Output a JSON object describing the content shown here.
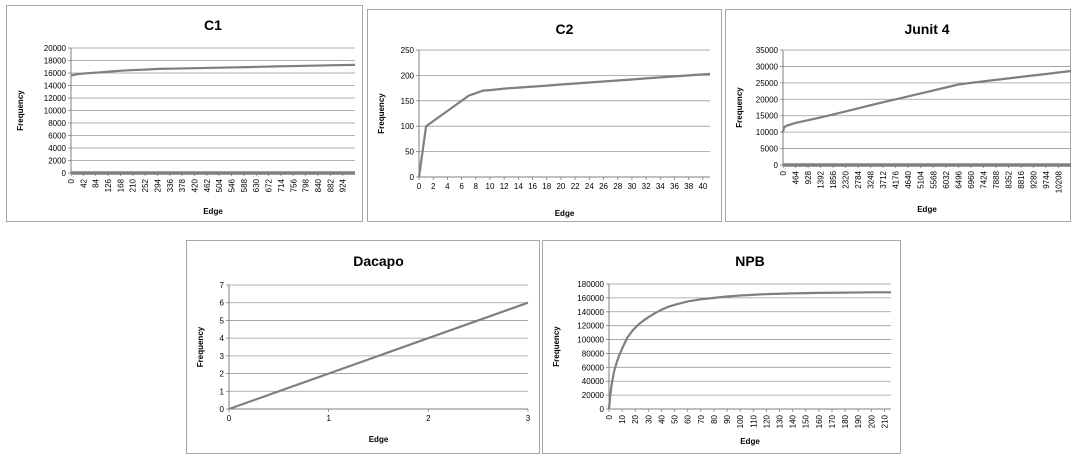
{
  "chart_data": [
    {
      "type": "line",
      "title": "C1",
      "xlabel": "Edge",
      "ylabel": "Frequency",
      "x_tick_labels": [
        "0",
        "42",
        "84",
        "126",
        "168",
        "210",
        "252",
        "294",
        "336",
        "378",
        "420",
        "462",
        "504",
        "546",
        "588",
        "630",
        "672",
        "714",
        "756",
        "798",
        "840",
        "882",
        "924"
      ],
      "x_tick_rotated": true,
      "xlim": [
        0,
        966
      ],
      "ylim": [
        0,
        20000
      ],
      "y_ticks": [
        0,
        2000,
        4000,
        6000,
        8000,
        10000,
        12000,
        14000,
        16000,
        18000,
        20000
      ],
      "grid": true,
      "baseline_thick": true,
      "series": [
        {
          "x": [
            0,
            20,
            50,
            100,
            150,
            200,
            250,
            300,
            400,
            500,
            600,
            700,
            800,
            900,
            966
          ],
          "y": [
            15600,
            15800,
            15950,
            16100,
            16300,
            16450,
            16550,
            16650,
            16750,
            16850,
            16950,
            17050,
            17150,
            17250,
            17300
          ]
        }
      ]
    },
    {
      "type": "line",
      "title": "C2",
      "xlabel": "Edge",
      "ylabel": "Frequency",
      "x_ticks": [
        0,
        2,
        4,
        6,
        8,
        10,
        12,
        14,
        16,
        18,
        20,
        22,
        24,
        26,
        28,
        30,
        32,
        34,
        36,
        38,
        40
      ],
      "x_tick_rotated": false,
      "xlim": [
        0,
        41
      ],
      "ylim": [
        0,
        250
      ],
      "y_ticks": [
        0,
        50,
        100,
        150,
        200,
        250
      ],
      "grid": true,
      "series": [
        {
          "x": [
            0,
            1,
            2,
            3,
            4,
            5,
            6,
            7,
            8,
            9,
            10,
            12,
            14,
            16,
            18,
            20,
            22,
            24,
            26,
            28,
            30,
            32,
            34,
            36,
            38,
            40,
            41
          ],
          "y": [
            0,
            100,
            110,
            120,
            130,
            140,
            150,
            160,
            165,
            170,
            171,
            174,
            176,
            178,
            180,
            182,
            184,
            186,
            188,
            190,
            192,
            194,
            196,
            198,
            200,
            202,
            203
          ]
        }
      ]
    },
    {
      "type": "line",
      "title": "Junit 4",
      "xlabel": "Edge",
      "ylabel": "Frequency",
      "x_tick_labels": [
        "0",
        "464",
        "928",
        "1392",
        "1856",
        "2320",
        "2784",
        "3248",
        "3712",
        "4176",
        "4640",
        "5104",
        "5568",
        "6032",
        "6496",
        "6960",
        "7424",
        "7888",
        "8352",
        "8816",
        "9280",
        "9744",
        "10208"
      ],
      "x_tick_rotated": true,
      "xlim": [
        0,
        10672
      ],
      "ylim": [
        0,
        35000
      ],
      "y_ticks": [
        0,
        5000,
        10000,
        15000,
        20000,
        25000,
        30000,
        35000
      ],
      "grid": true,
      "baseline_thick": true,
      "series": [
        {
          "x": [
            0,
            40,
            150,
            464,
            1392,
            2320,
            3248,
            4176,
            5104,
            6032,
            6496,
            6960,
            7888,
            8816,
            9744,
            10672
          ],
          "y": [
            10000,
            11500,
            12000,
            12800,
            14500,
            16300,
            18200,
            20000,
            21800,
            23600,
            24500,
            25000,
            25900,
            26800,
            27700,
            28600
          ]
        }
      ]
    },
    {
      "type": "line",
      "title": "Dacapo",
      "xlabel": "Edge",
      "ylabel": "Frequency",
      "x_ticks": [
        0,
        1,
        2,
        3
      ],
      "x_tick_rotated": false,
      "xlim": [
        0,
        3
      ],
      "ylim": [
        0,
        7
      ],
      "y_ticks": [
        0,
        1,
        2,
        3,
        4,
        5,
        6,
        7
      ],
      "grid": true,
      "series": [
        {
          "x": [
            0,
            3
          ],
          "y": [
            0,
            6
          ]
        }
      ]
    },
    {
      "type": "line",
      "title": "NPB",
      "xlabel": "Edge",
      "ylabel": "Frequency",
      "x_ticks": [
        0,
        10,
        20,
        30,
        40,
        50,
        60,
        70,
        80,
        90,
        100,
        110,
        120,
        130,
        140,
        150,
        160,
        170,
        180,
        190,
        200,
        210
      ],
      "x_tick_rotated": true,
      "xlim": [
        0,
        215
      ],
      "ylim": [
        0,
        180000
      ],
      "y_ticks": [
        0,
        20000,
        40000,
        60000,
        80000,
        100000,
        120000,
        140000,
        160000,
        180000
      ],
      "grid": true,
      "series": [
        {
          "x": [
            0,
            1,
            2,
            4,
            6,
            8,
            10,
            14,
            18,
            22,
            26,
            30,
            35,
            40,
            45,
            50,
            60,
            70,
            80,
            90,
            100,
            120,
            140,
            160,
            180,
            200,
            215
          ],
          "y": [
            0,
            20000,
            35000,
            55000,
            68000,
            78000,
            87000,
            103000,
            113000,
            121000,
            127000,
            132000,
            138000,
            143000,
            147000,
            150000,
            155000,
            158000,
            160000,
            162000,
            163500,
            165500,
            166500,
            167200,
            167600,
            168000,
            168000
          ]
        }
      ]
    }
  ],
  "colors": {
    "line": "#7f7f7f",
    "grid": "#999999",
    "axis": "#7f7f7f",
    "baseline": "#7f7f7f"
  }
}
